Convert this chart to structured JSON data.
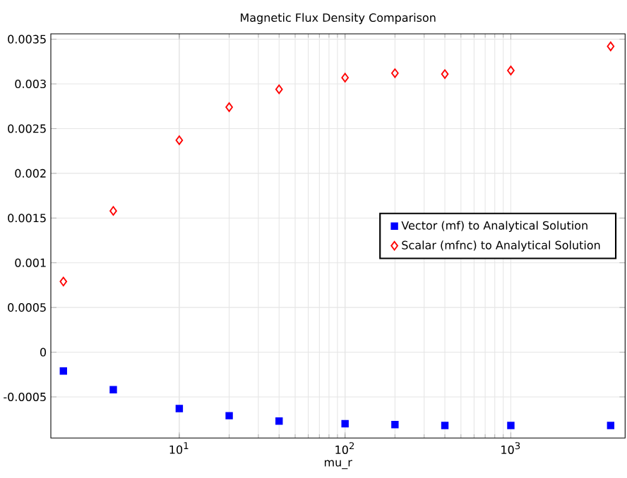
{
  "chart_data": {
    "type": "scatter",
    "title": "Magnetic Flux Density Comparison",
    "xlabel": "mu_r",
    "log": "x",
    "grid": true,
    "legend": "right",
    "x": [
      2,
      4,
      10,
      20,
      40,
      100,
      200,
      400,
      1000,
      4000
    ],
    "xlim": [
      1.68,
      4890
    ],
    "ylim": [
      -0.00096,
      0.00356
    ],
    "xticks": [
      {
        "value": 10,
        "label": "10$^{1}$"
      },
      {
        "value": 100,
        "label": "10$^{2}$"
      },
      {
        "value": 1000,
        "label": "10$^{3}$"
      }
    ],
    "yticks": [
      -0.0005,
      0,
      0.0005,
      0.001,
      0.0015,
      0.002,
      0.0025,
      0.003,
      0.0035
    ],
    "series": [
      {
        "name": "Vector (mf) to Analytical Solution",
        "color": "#0000ff",
        "marker": "square",
        "values": [
          -0.00021,
          -0.00042,
          -0.00063,
          -0.00071,
          -0.00077,
          -0.0008,
          -0.00081,
          -0.00082,
          -0.00082,
          -0.00082
        ]
      },
      {
        "name": "Scalar (mfnc) to Analytical Solution",
        "color": "#ff0000",
        "marker": "diamond",
        "values": [
          0.00079,
          0.00158,
          0.00237,
          0.00274,
          0.00294,
          0.00307,
          0.00312,
          0.00311,
          0.00315,
          0.00342
        ]
      }
    ]
  }
}
